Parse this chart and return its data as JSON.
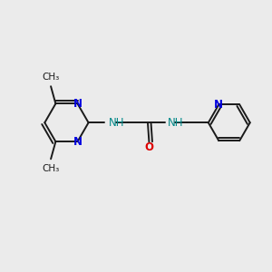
{
  "bg_color": "#ebebeb",
  "bond_color": "#1a1a1a",
  "N_color": "#0000e0",
  "O_color": "#dd0000",
  "NH_color": "#008888",
  "figsize": [
    3.0,
    3.0
  ],
  "dpi": 100,
  "xlim": [
    0,
    10
  ],
  "ylim": [
    0,
    10
  ]
}
